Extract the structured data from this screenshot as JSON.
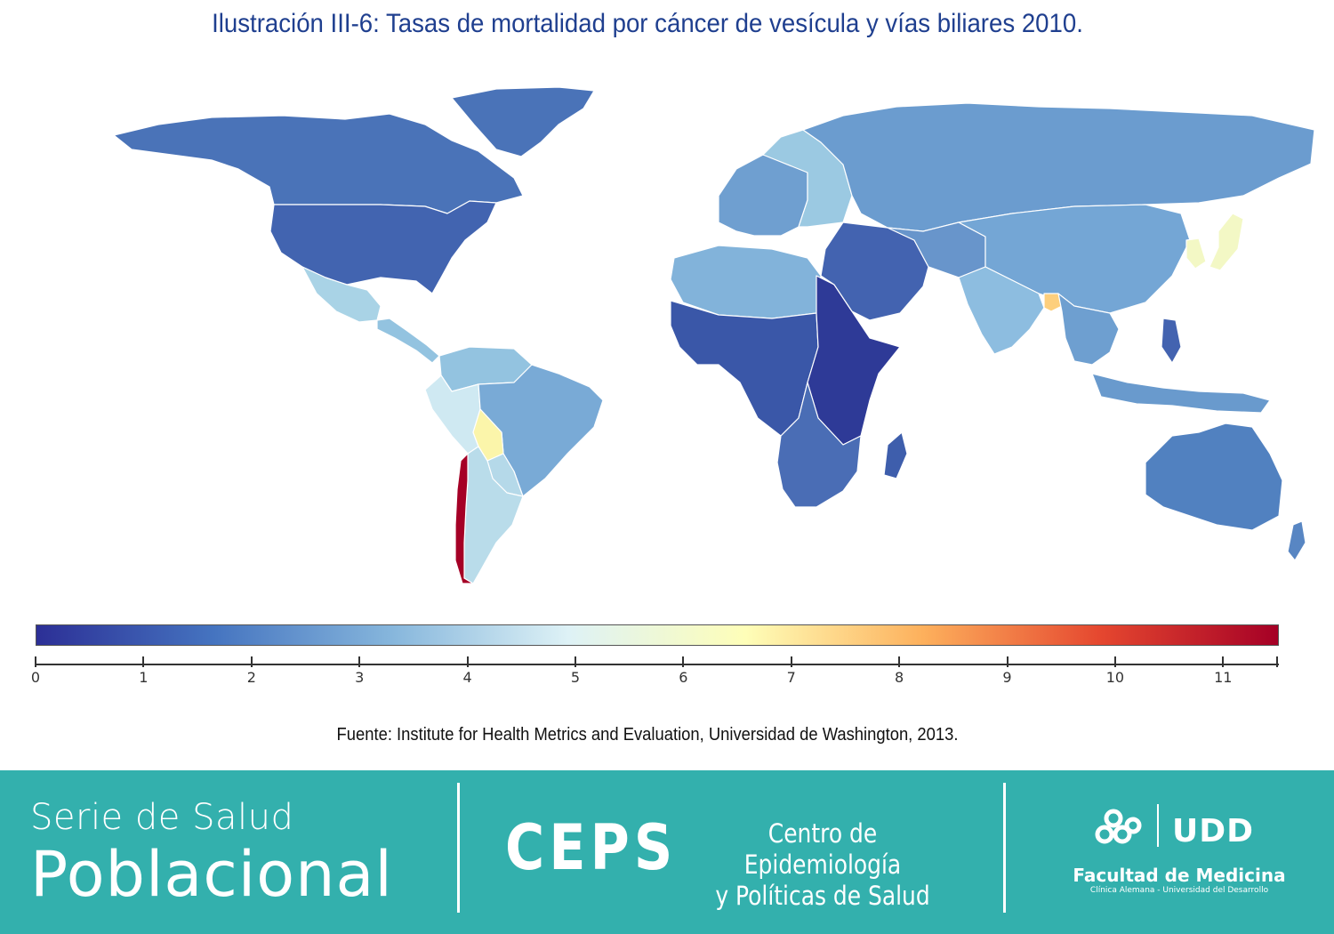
{
  "title": "Ilustración III-6: Tasas de mortalidad por cáncer de vesícula y vías biliares 2010.",
  "legend": {
    "ticks": [
      "0",
      "1",
      "2",
      "3",
      "4",
      "5",
      "6",
      "7",
      "8",
      "9",
      "10",
      "11"
    ],
    "min": 0,
    "max": 11.5,
    "gradient": [
      "#2c2f96",
      "#4574c0",
      "#86b6dc",
      "#def2f6",
      "#fefeb8",
      "#fdb05c",
      "#e5472f",
      "#a50026"
    ]
  },
  "map": {
    "regions": [
      {
        "name": "canada",
        "value": 1.9,
        "color": "#4a73b8"
      },
      {
        "name": "united-states",
        "value": 1.8,
        "color": "#4264b0"
      },
      {
        "name": "greenland",
        "value": 1.9,
        "color": "#4a73b8"
      },
      {
        "name": "mexico",
        "value": 3.6,
        "color": "#a9d3e6"
      },
      {
        "name": "central-america",
        "value": 3.3,
        "color": "#93c3e0"
      },
      {
        "name": "colombia-venezuela",
        "value": 3.3,
        "color": "#93c3e0"
      },
      {
        "name": "peru-ecuador",
        "value": 4.3,
        "color": "#cfe9f2"
      },
      {
        "name": "brazil",
        "value": 2.8,
        "color": "#79aad6"
      },
      {
        "name": "bolivia",
        "value": 5.6,
        "color": "#fbf5aa"
      },
      {
        "name": "paraguay",
        "value": 3.7,
        "color": "#b5d9e9"
      },
      {
        "name": "argentina",
        "value": 3.8,
        "color": "#b9dcea"
      },
      {
        "name": "chile",
        "value": 11.3,
        "color": "#a50026"
      },
      {
        "name": "europe",
        "value": 2.7,
        "color": "#6f9fd0"
      },
      {
        "name": "eastern-europe",
        "value": 3.3,
        "color": "#9bc9e2"
      },
      {
        "name": "russia",
        "value": 2.6,
        "color": "#6b9ccf"
      },
      {
        "name": "north-africa",
        "value": 3.0,
        "color": "#82b3da"
      },
      {
        "name": "west-central-africa",
        "value": 1.5,
        "color": "#3a57a8"
      },
      {
        "name": "east-africa",
        "value": 0.8,
        "color": "#2e3a97"
      },
      {
        "name": "southern-africa",
        "value": 1.8,
        "color": "#4a6db5"
      },
      {
        "name": "madagascar",
        "value": 1.6,
        "color": "#3e5eac"
      },
      {
        "name": "middle-east",
        "value": 1.6,
        "color": "#4363b0"
      },
      {
        "name": "central-asia",
        "value": 2.6,
        "color": "#6895cb"
      },
      {
        "name": "china-mongolia",
        "value": 2.8,
        "color": "#74a6d5"
      },
      {
        "name": "india",
        "value": 3.1,
        "color": "#8dbde0"
      },
      {
        "name": "bangladesh",
        "value": 6.5,
        "color": "#fdcf7d"
      },
      {
        "name": "korea-japan",
        "value": 5.2,
        "color": "#f3f8c5"
      },
      {
        "name": "southeast-asia",
        "value": 2.7,
        "color": "#6e9fd0"
      },
      {
        "name": "indonesia",
        "value": 2.6,
        "color": "#699acd"
      },
      {
        "name": "philippines",
        "value": 1.6,
        "color": "#4363b0"
      },
      {
        "name": "australia",
        "value": 2.1,
        "color": "#5181c0"
      },
      {
        "name": "new-zealand",
        "value": 2.2,
        "color": "#5886c3"
      }
    ]
  },
  "source": "Fuente: Institute for Health Metrics and Evaluation, Universidad de Washington, 2013.",
  "footer": {
    "serie_line1": "Serie de Salud",
    "serie_line2": "Poblacional",
    "ceps": "CEPS",
    "ceps_line1": "Centro de Epidemiología",
    "ceps_line2": "y Políticas de Salud",
    "udd": "UDD",
    "facultad": "Facultad de Medicina",
    "facultad_sub": "Clínica Alemana - Universidad del Desarrollo",
    "bg_color": "#33b0ad"
  }
}
